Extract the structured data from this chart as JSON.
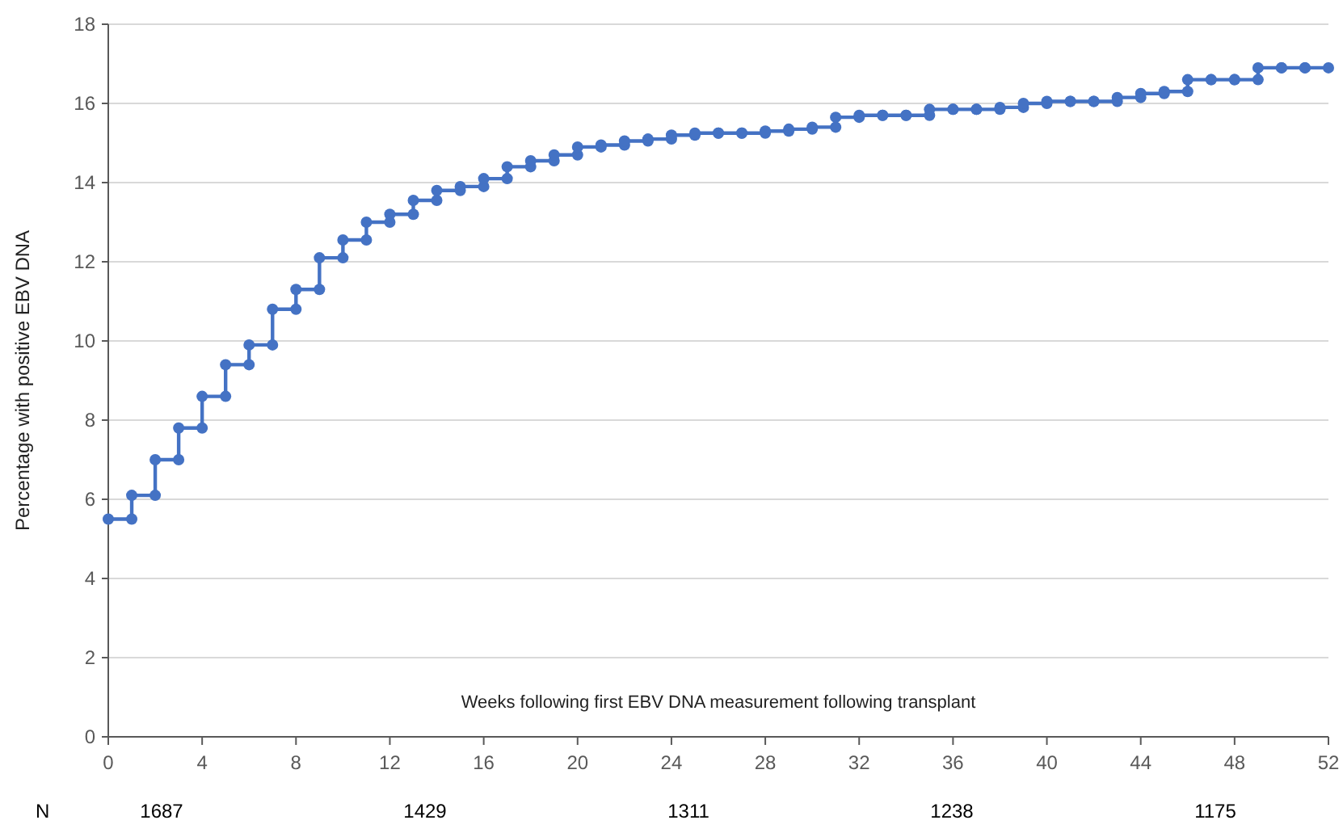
{
  "chart_data": {
    "type": "line",
    "xlabel": "Weeks following first EBV DNA measurement following transplant",
    "ylabel": "Percentage with positive EBV DNA",
    "x": [
      0,
      1,
      1,
      2,
      2,
      3,
      3,
      4,
      4,
      5,
      5,
      6,
      6,
      7,
      7,
      8,
      8,
      9,
      9,
      10,
      10,
      11,
      11,
      12,
      12,
      13,
      13,
      14,
      14,
      15,
      15,
      16,
      16,
      17,
      17,
      18,
      18,
      19,
      19,
      20,
      20,
      21,
      21,
      22,
      22,
      23,
      23,
      24,
      24,
      25,
      25,
      26,
      26,
      27,
      27,
      28,
      28,
      29,
      29,
      30,
      30,
      31,
      31,
      32,
      32,
      33,
      33,
      34,
      34,
      35,
      35,
      36,
      36,
      37,
      37,
      38,
      38,
      39,
      39,
      40,
      40,
      41,
      41,
      42,
      42,
      43,
      43,
      44,
      44,
      45,
      45,
      46,
      46,
      47,
      47,
      48,
      48,
      49,
      49,
      50,
      50,
      51,
      51,
      52
    ],
    "series": [
      {
        "color": "#4472c4",
        "values": [
          5.5,
          5.5,
          6.1,
          6.1,
          7.0,
          7.0,
          7.8,
          7.8,
          8.6,
          8.6,
          9.4,
          9.4,
          9.9,
          9.9,
          10.8,
          10.8,
          11.3,
          11.3,
          12.1,
          12.1,
          12.55,
          12.55,
          13.0,
          13.0,
          13.2,
          13.2,
          13.55,
          13.55,
          13.8,
          13.8,
          13.9,
          13.9,
          14.1,
          14.1,
          14.4,
          14.4,
          14.55,
          14.55,
          14.7,
          14.7,
          14.9,
          14.9,
          14.95,
          14.95,
          15.05,
          15.05,
          15.1,
          15.1,
          15.2,
          15.2,
          15.25,
          15.25,
          15.25,
          15.25,
          15.25,
          15.25,
          15.3,
          15.3,
          15.35,
          15.35,
          15.4,
          15.4,
          15.65,
          15.65,
          15.7,
          15.7,
          15.7,
          15.7,
          15.7,
          15.7,
          15.85,
          15.85,
          15.85,
          15.85,
          15.85,
          15.85,
          15.9,
          15.9,
          16.0,
          16.0,
          16.05,
          16.05,
          16.05,
          16.05,
          16.05,
          16.05,
          16.15,
          16.15,
          16.25,
          16.25,
          16.3,
          16.3,
          16.6,
          16.6,
          16.6,
          16.6,
          16.6,
          16.6,
          16.9,
          16.9,
          16.9,
          16.9,
          16.9,
          16.9
        ]
      }
    ],
    "xlim": [
      0,
      52
    ],
    "xticks": [
      0,
      4,
      8,
      12,
      16,
      20,
      24,
      28,
      32,
      36,
      40,
      44,
      48,
      52
    ],
    "ylim": [
      0,
      18
    ],
    "yticks": [
      0,
      2,
      4,
      6,
      8,
      10,
      12,
      14,
      16,
      18
    ],
    "grid": "y",
    "marker": "circle",
    "line_style": "solid",
    "annotations": [
      "N",
      "1687",
      "1429",
      "1311",
      "1238",
      "1175"
    ]
  }
}
